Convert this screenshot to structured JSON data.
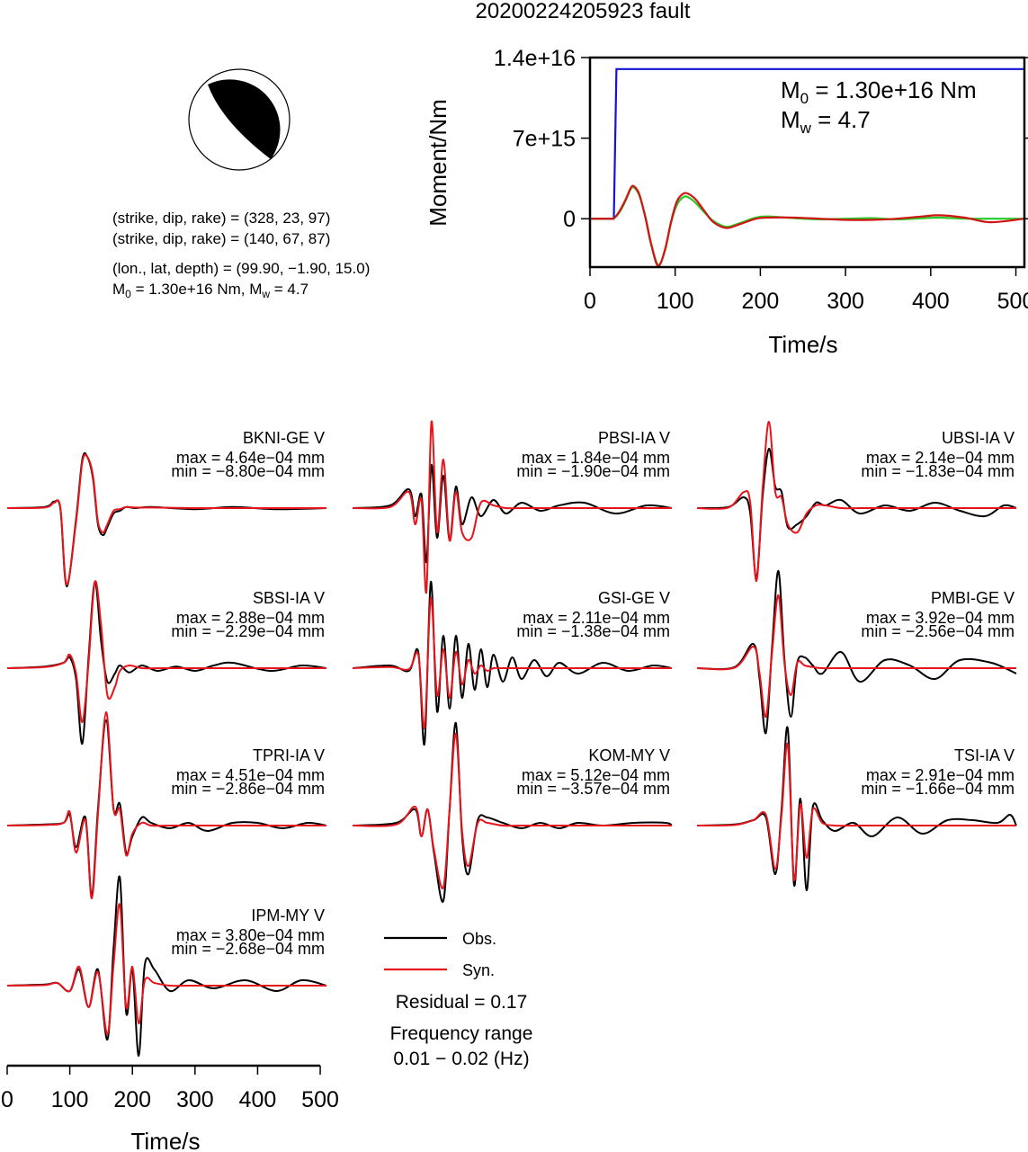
{
  "title": "20200224205923 fault",
  "mechanism": {
    "plane1": "(strike, dip, rake) = (328, 23, 97)",
    "plane2": "(strike, dip, rake) = (140, 67, 87)",
    "location": "(lon., lat, depth) = (99.90, −1.90, 15.0)",
    "moment_prefix": "M",
    "moment_sub": "0",
    "moment_value": " = 1.30e+16 Nm, M",
    "mw_sub": "w",
    "mw_value": " = 4.7"
  },
  "moment_panel": {
    "m0_label": "M",
    "m0_sub": "0",
    "m0_value": " = 1.30e+16 Nm",
    "mw_label": "M",
    "mw_sub": "w",
    "mw_value": " = 4.7"
  },
  "legend": {
    "obs": "Obs.",
    "syn": "Syn.",
    "residual": "Residual = 0.17",
    "freq_title": "Frequency range",
    "freq_value": "0.01 − 0.02 (Hz)"
  },
  "colors": {
    "observed": "#000000",
    "synthetic": "#e8141c",
    "moment": "#1414d2",
    "source_green": "#28c828",
    "source_red": "#d21414"
  },
  "chart_data": [
    {
      "type": "line",
      "title": "",
      "xlabel": "Time/s",
      "ylabel": "Moment/Nm",
      "xlim": [
        0,
        510
      ],
      "ylim": [
        -4200000000000000,
        14000000000000000
      ],
      "xticks": [
        0,
        100,
        200,
        300,
        400,
        500
      ],
      "yticks": [
        0,
        7000000000000000,
        14000000000000000
      ],
      "ytick_labels": [
        "0",
        "7e+15",
        "1.4e+16"
      ],
      "grid": false,
      "series": [
        {
          "id": "moment",
          "color": "#1414d2",
          "x": [
            0,
            28,
            31,
            510
          ],
          "y": [
            0,
            0,
            13000000000000000,
            13000000000000000
          ]
        },
        {
          "id": "source_a",
          "color": "#28c828",
          "x": [
            0,
            20,
            28,
            35,
            42,
            48,
            52,
            58,
            65,
            72,
            80,
            88,
            95,
            102,
            110,
            117,
            125,
            135,
            145,
            160,
            175,
            195,
            210,
            240,
            270,
            300,
            330,
            360,
            390,
            410,
            440,
            470,
            510
          ],
          "y": [
            0,
            0,
            50000000000000.0,
            600000000000000.0,
            1600000000000000.0,
            2600000000000000.0,
            2700000000000000.0,
            2000000000000000.0,
            200000000000000.0,
            -2200000000000000.0,
            -4000000000000000.0,
            -2800000000000000.0,
            -400000000000000.0,
            1200000000000000.0,
            1900000000000000.0,
            1800000000000000.0,
            1300000000000000.0,
            500000000000000.0,
            -200000000000000.0,
            -700000000000000.0,
            -400000000000000.0,
            100000000000000.0,
            200000000000000.0,
            50000000000000.0,
            -50000000000000.0,
            0,
            50000000000000.0,
            -50000000000000.0,
            50000000000000.0,
            100000000000000.0,
            0,
            0,
            0
          ]
        },
        {
          "id": "source_b",
          "color": "#d21414",
          "x": [
            0,
            20,
            28,
            35,
            42,
            48,
            52,
            58,
            65,
            72,
            80,
            88,
            95,
            102,
            110,
            117,
            125,
            135,
            145,
            160,
            175,
            195,
            210,
            240,
            270,
            300,
            330,
            360,
            390,
            410,
            440,
            470,
            510
          ],
          "y": [
            0,
            0,
            50000000000000.0,
            700000000000000.0,
            1700000000000000.0,
            2700000000000000.0,
            2800000000000000.0,
            2100000000000000.0,
            100000000000000.0,
            -2300000000000000.0,
            -4100000000000000.0,
            -2700000000000000.0,
            -300000000000000.0,
            1500000000000000.0,
            2200000000000000.0,
            2100000000000000.0,
            1600000000000000.0,
            600000000000000.0,
            -300000000000000.0,
            -800000000000000.0,
            -500000000000000.0,
            0,
            100000000000000.0,
            100000000000000.0,
            0,
            -100000000000000.0,
            -100000000000000.0,
            0,
            200000000000000.0,
            300000000000000.0,
            100000000000000.0,
            -300000000000000.0,
            0
          ]
        }
      ]
    },
    {
      "type": "line",
      "title": "",
      "xlabel": "Time/s",
      "ylabel": "",
      "xlim": [
        0,
        510
      ],
      "xticks": [
        0,
        100,
        200,
        300,
        400,
        500
      ],
      "legend": [
        "Obs.",
        "Syn."
      ],
      "stations": [
        {
          "name": "BKNI-GE V",
          "max": "max = 4.64e−04 mm",
          "min": "min = −8.80e−04 mm",
          "t": [
            0,
            60,
            75,
            85,
            95,
            110,
            120,
            128,
            137,
            145,
            153,
            160,
            170,
            180,
            190,
            205,
            230,
            300,
            360,
            430,
            510
          ],
          "obs": [
            0,
            0.02,
            0.12,
            -0.02,
            -1.45,
            -0.2,
            0.9,
            0.95,
            0.55,
            -0.3,
            -0.5,
            -0.35,
            -0.1,
            -0.05,
            0.02,
            0,
            0.02,
            -0.02,
            0.02,
            -0.02,
            0
          ],
          "syn": [
            0,
            0.01,
            0.1,
            0,
            -1.42,
            -0.25,
            0.85,
            0.95,
            0.6,
            -0.25,
            -0.45,
            -0.3,
            -0.05,
            -0.02,
            0.02,
            0.01,
            0.01,
            0,
            0,
            0,
            0
          ]
        },
        {
          "name": "PBSI-IA V",
          "max": "max = 1.84e−04 mm",
          "min": "min = −1.90e−04 mm",
          "t": [
            0,
            60,
            90,
            100,
            110,
            118,
            126,
            135,
            145,
            155,
            165,
            175,
            190,
            205,
            225,
            245,
            270,
            300,
            330,
            370,
            420,
            470,
            510
          ],
          "obs": [
            0,
            0.05,
            0.35,
            -0.15,
            0.25,
            -1.0,
            0.8,
            -0.55,
            0.6,
            -0.6,
            0.4,
            -0.3,
            0.2,
            -0.15,
            0.15,
            -0.1,
            0.1,
            -0.05,
            0.05,
            0.1,
            -0.1,
            0.05,
            0
          ],
          "syn": [
            0,
            0.02,
            0.3,
            -0.3,
            0.15,
            -1.55,
            1.6,
            -0.45,
            0.9,
            -0.6,
            0.3,
            -0.45,
            -0.55,
            0.1,
            0.05,
            0,
            0,
            0,
            0,
            0,
            0,
            0,
            0
          ]
        },
        {
          "name": "UBSI-IA V",
          "max": "max = 2.14e−04 mm",
          "min": "min = −1.83e−04 mm",
          "t": [
            0,
            50,
            75,
            85,
            95,
            105,
            115,
            125,
            135,
            145,
            160,
            175,
            190,
            205,
            230,
            260,
            300,
            340,
            380,
            420,
            460,
            490,
            510
          ],
          "obs": [
            0,
            0.02,
            0.2,
            -0.1,
            -1.3,
            0.25,
            1.1,
            0.4,
            0.3,
            -0.35,
            -0.3,
            -0.15,
            0.1,
            0.05,
            0.15,
            -0.1,
            0.05,
            -0.05,
            0.1,
            -0.05,
            -0.15,
            0.05,
            0
          ],
          "syn": [
            0,
            0.01,
            0.3,
            0.1,
            -1.35,
            0.4,
            1.6,
            0.3,
            0.2,
            -0.3,
            -0.45,
            -0.1,
            0.05,
            0.05,
            0,
            0,
            0,
            0,
            0,
            0,
            0,
            0,
            0
          ]
        },
        {
          "name": "SBSI-IA V",
          "max": "max = 2.88e−04 mm",
          "min": "min = −2.29e−04 mm",
          "t": [
            0,
            60,
            90,
            100,
            110,
            120,
            130,
            140,
            150,
            160,
            172,
            180,
            195,
            215,
            240,
            270,
            300,
            330,
            360,
            420,
            470,
            510
          ],
          "obs": [
            0,
            0.03,
            0.1,
            0.2,
            -0.2,
            -1.4,
            0.2,
            1.6,
            0.5,
            -0.25,
            -0.1,
            0.05,
            -0.08,
            0.05,
            -0.05,
            0.03,
            -0.05,
            0.05,
            0.1,
            -0.05,
            0.05,
            0
          ],
          "syn": [
            0,
            0.02,
            0.1,
            0.25,
            -0.1,
            -1.0,
            0.1,
            1.6,
            0.8,
            -0.5,
            -0.35,
            -0.05,
            0.05,
            0,
            0,
            0,
            0,
            0,
            0,
            0,
            0,
            0
          ]
        },
        {
          "name": "GSI-GE V",
          "max": "max = 2.11e−04 mm",
          "min": "min = −1.38e−04 mm",
          "t": [
            0,
            60,
            90,
            105,
            115,
            125,
            135,
            145,
            155,
            165,
            175,
            185,
            195,
            205,
            215,
            225,
            240,
            255,
            270,
            290,
            310,
            330,
            360,
            400,
            440,
            480,
            510
          ],
          "obs": [
            0,
            0.05,
            -0.05,
            0.3,
            -1.4,
            1.6,
            -0.8,
            0.6,
            -0.75,
            0.6,
            -0.55,
            0.45,
            -0.4,
            0.35,
            -0.35,
            0.25,
            -0.25,
            0.2,
            -0.2,
            0.15,
            -0.15,
            0.1,
            -0.1,
            0.1,
            -0.05,
            0.05,
            0
          ],
          "syn": [
            0,
            0.02,
            -0.02,
            0.25,
            -1.1,
            1.3,
            -0.5,
            0.35,
            -0.55,
            0.3,
            -0.3,
            0.15,
            -0.1,
            0.05,
            -0.05,
            0,
            0,
            0,
            0,
            0,
            0,
            0,
            0,
            0,
            0,
            0,
            0
          ]
        },
        {
          "name": "PMBI-GE V",
          "max": "max = 3.92e−04 mm",
          "min": "min = −2.56e−04 mm",
          "t": [
            0,
            60,
            90,
            100,
            110,
            120,
            130,
            140,
            150,
            160,
            172,
            185,
            200,
            230,
            260,
            300,
            340,
            380,
            420,
            470,
            510
          ],
          "obs": [
            0,
            0.02,
            0.45,
            -0.2,
            -1.2,
            0.4,
            1.8,
            0.1,
            -0.9,
            0.1,
            0.2,
            0.05,
            -0.1,
            0.3,
            -0.25,
            0.15,
            0.05,
            -0.2,
            0.15,
            0.1,
            -0.1
          ],
          "syn": [
            0,
            0.01,
            0.4,
            -0.1,
            -0.9,
            0.3,
            1.35,
            0.05,
            -0.5,
            0.1,
            0.05,
            0.02,
            0,
            0,
            0,
            0,
            0,
            0,
            0,
            0,
            0
          ]
        },
        {
          "name": "TPRI-IA V",
          "max": "max = 4.51e−04 mm",
          "min": "min = −2.86e−04 mm",
          "t": [
            0,
            60,
            90,
            100,
            110,
            125,
            135,
            145,
            158,
            170,
            180,
            190,
            200,
            215,
            230,
            260,
            290,
            320,
            360,
            400,
            440,
            480,
            510
          ],
          "obs": [
            0,
            0.02,
            0.05,
            0.2,
            -0.4,
            0.15,
            -1.3,
            0.3,
            1.95,
            0.3,
            0.4,
            -0.5,
            -0.2,
            0.15,
            0.05,
            -0.05,
            0.05,
            -0.1,
            0.05,
            0.05,
            -0.05,
            0.05,
            0
          ],
          "syn": [
            0,
            0.01,
            0.05,
            0.25,
            -0.5,
            0.1,
            -1.35,
            0.2,
            2.1,
            0.3,
            0.3,
            -0.55,
            -0.15,
            0.05,
            0,
            0,
            0,
            0,
            0,
            0,
            0,
            0,
            0
          ]
        },
        {
          "name": "KOM-MY V",
          "max": "max = 5.12e−04 mm",
          "min": "min = −3.57e−04 mm",
          "t": [
            0,
            70,
            100,
            110,
            120,
            130,
            145,
            155,
            165,
            175,
            185,
            200,
            215,
            240,
            270,
            300,
            330,
            360,
            400,
            450,
            500,
            510
          ],
          "obs": [
            0,
            0.05,
            0.3,
            -0.2,
            0.3,
            -0.5,
            -1.4,
            0.3,
            1.9,
            -0.2,
            -0.9,
            0.1,
            0.15,
            0.05,
            -0.05,
            0.05,
            -0.05,
            0.05,
            0,
            0.05,
            0.05,
            0
          ],
          "syn": [
            0,
            0.02,
            0.35,
            -0.2,
            0.3,
            -0.45,
            -1.15,
            0.3,
            1.7,
            -0.1,
            -0.75,
            0.05,
            0.05,
            0,
            0,
            0,
            0,
            0,
            0,
            0,
            0,
            0
          ]
        },
        {
          "name": "TSI-IA V",
          "max": "max = 2.91e−04 mm",
          "min": "min = −1.66e−04 mm",
          "t": [
            0,
            60,
            90,
            110,
            125,
            135,
            145,
            155,
            165,
            175,
            185,
            200,
            220,
            250,
            280,
            320,
            360,
            400,
            440,
            480,
            500,
            510
          ],
          "obs": [
            0,
            0.02,
            0.1,
            0.15,
            -0.9,
            0.3,
            1.8,
            -1.1,
            0.5,
            -1.2,
            0.35,
            0.1,
            -0.1,
            0.05,
            -0.2,
            0.15,
            -0.15,
            0.1,
            0.1,
            0.05,
            0.2,
            0
          ],
          "syn": [
            0,
            0.01,
            0.1,
            0.2,
            -0.8,
            0.2,
            1.5,
            -1.0,
            0.4,
            -0.6,
            0.3,
            0.05,
            0,
            0,
            0,
            0,
            0,
            0,
            0,
            0,
            0,
            0
          ]
        },
        {
          "name": "IPM-MY V",
          "max": "max = 3.80e−04 mm",
          "min": "min = −2.68e−04 mm",
          "t": [
            0,
            60,
            80,
            100,
            115,
            130,
            145,
            160,
            170,
            180,
            190,
            200,
            210,
            220,
            235,
            260,
            290,
            330,
            380,
            430,
            470,
            510
          ],
          "obs": [
            0,
            0.02,
            0.05,
            -0.1,
            0.3,
            -0.4,
            0.3,
            -1.0,
            0.7,
            2.0,
            -0.5,
            0.3,
            -1.3,
            0.4,
            0.3,
            -0.1,
            0.1,
            -0.05,
            0.1,
            -0.1,
            0.1,
            0
          ],
          "syn": [
            0,
            0.01,
            0.05,
            -0.1,
            0.35,
            -0.4,
            0.25,
            -0.9,
            0.4,
            1.5,
            -0.4,
            0.35,
            -0.7,
            0.1,
            0.05,
            0,
            0,
            0,
            0,
            0,
            0,
            0
          ]
        }
      ]
    }
  ]
}
